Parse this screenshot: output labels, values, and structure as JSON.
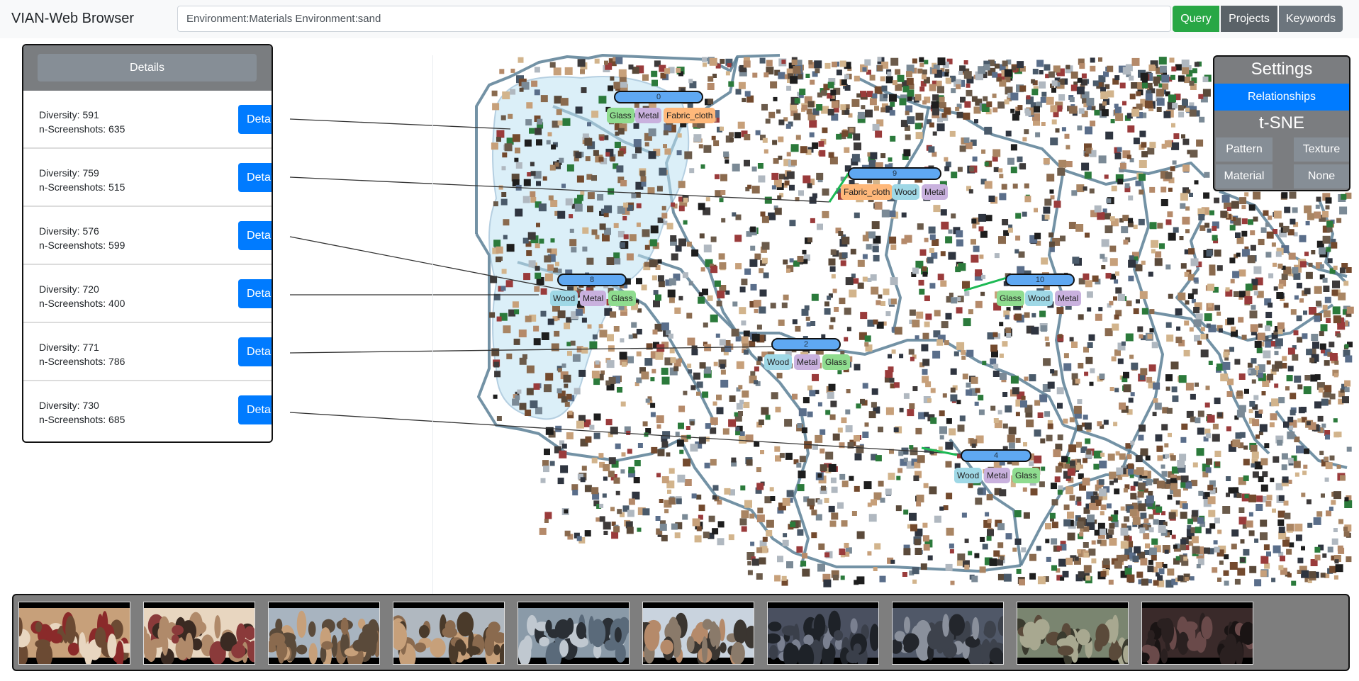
{
  "navbar": {
    "brand": "VIAN-Web Browser",
    "query_value": "Environment:Materials Environment:sand",
    "query_label": "Query",
    "projects_label": "Projects",
    "keywords_label": "Keywords"
  },
  "left_panel": {
    "header_button": "Details",
    "clusters": [
      {
        "diversity": "Diversity: 591",
        "screenshots": "n-Screenshots: 635",
        "button": "Details"
      },
      {
        "diversity": "Diversity: 759",
        "screenshots": "n-Screenshots: 515",
        "button": "Details"
      },
      {
        "diversity": "Diversity: 576",
        "screenshots": "n-Screenshots: 599",
        "button": "Details"
      },
      {
        "diversity": "Diversity: 720",
        "screenshots": "n-Screenshots: 400",
        "button": "Details"
      },
      {
        "diversity": "Diversity: 771",
        "screenshots": "n-Screenshots: 786",
        "button": "Details"
      },
      {
        "diversity": "Diversity: 730",
        "screenshots": "n-Screenshots: 685",
        "button": "Details"
      }
    ]
  },
  "settings": {
    "title": "Settings",
    "relationships_label": "Relationships",
    "projection_label": "t-SNE",
    "pattern_label": "Pattern",
    "texture_label": "Texture",
    "material_label": "Material",
    "none_label": "None"
  },
  "map_clusters": [
    {
      "id": "0",
      "tags": [
        "Glass",
        "Metal",
        "Fabric_cloth"
      ]
    },
    {
      "id": "9",
      "tags": [
        "Fabric_cloth",
        "Wood",
        "Metal"
      ]
    },
    {
      "id": "8",
      "tags": [
        "Wood",
        "Metal",
        "Glass"
      ]
    },
    {
      "id": "10",
      "tags": [
        "Glass",
        "Wood",
        "Metal"
      ]
    },
    {
      "id": "2",
      "tags": [
        "Wood",
        "Metal",
        "Glass"
      ]
    },
    {
      "id": "4",
      "tags": [
        "Wood",
        "Metal",
        "Glass"
      ]
    }
  ],
  "colors": {
    "query": "#28a745",
    "primary": "#007bff",
    "secondary": "#6c757d",
    "glass": "#8fdc8f",
    "metal": "#c9b1de",
    "wood": "#9fd8e6",
    "fabric": "#ffb87a",
    "contour": "#5a7f95"
  },
  "filmstrip": {
    "thumbnails": [
      "screenshot-1",
      "screenshot-2",
      "screenshot-3",
      "screenshot-4",
      "screenshot-5",
      "screenshot-6",
      "screenshot-7",
      "screenshot-8",
      "screenshot-9",
      "screenshot-10"
    ]
  }
}
